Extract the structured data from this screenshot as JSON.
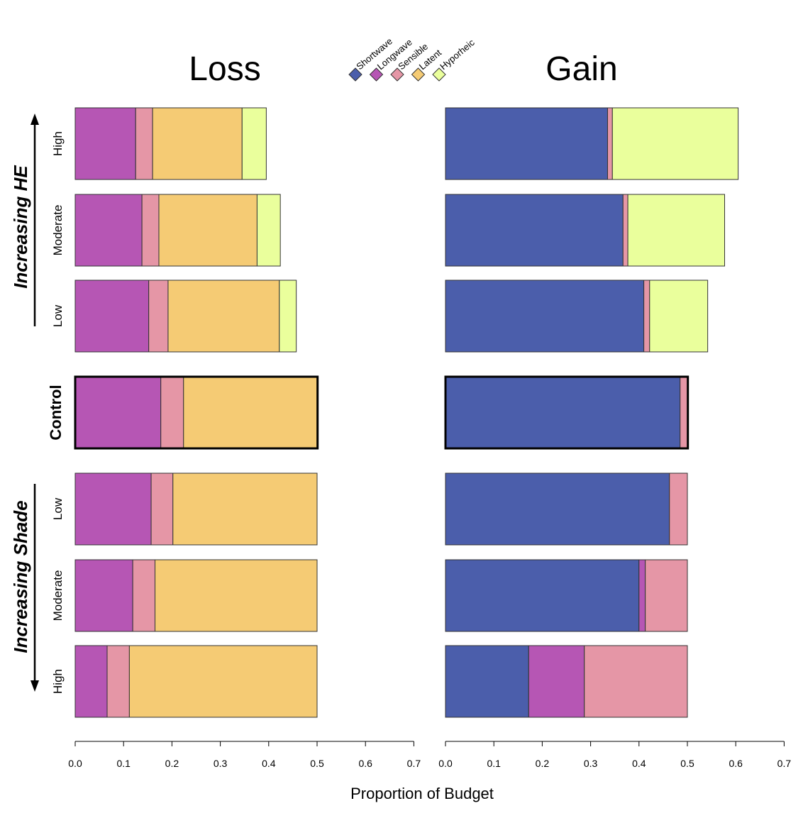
{
  "chart_data": {
    "type": "bar",
    "orientation": "horizontal",
    "stacked": true,
    "xlabel": "Proportion of Budget",
    "xlim": [
      0,
      0.7
    ],
    "xticks": [
      "0.0",
      "0.1",
      "0.2",
      "0.3",
      "0.4",
      "0.5",
      "0.6",
      "0.7"
    ],
    "components": [
      {
        "name": "Shortwave",
        "color": "#4b5eab"
      },
      {
        "name": "Longwave",
        "color": "#b656b4"
      },
      {
        "name": "Sensible",
        "color": "#e596a6"
      },
      {
        "name": "Latent",
        "color": "#f5cb74"
      },
      {
        "name": "Hyporheic",
        "color": "#eaff9c"
      }
    ],
    "group_labels": {
      "top": "Increasing HE",
      "bottom": "Increasing Shade"
    },
    "rows": [
      {
        "label": "High",
        "group": "HE"
      },
      {
        "label": "Moderate",
        "group": "HE"
      },
      {
        "label": "Low",
        "group": "HE"
      },
      {
        "label": "Control",
        "group": "Control"
      },
      {
        "label": "Low",
        "group": "Shade"
      },
      {
        "label": "Moderate",
        "group": "Shade"
      },
      {
        "label": "High",
        "group": "Shade"
      }
    ],
    "panels": [
      {
        "title": "Loss",
        "values": [
          [
            0,
            0.125,
            0.035,
            0.185,
            0.05
          ],
          [
            0,
            0.138,
            0.035,
            0.203,
            0.048
          ],
          [
            0,
            0.152,
            0.04,
            0.23,
            0.035
          ],
          [
            0,
            0.177,
            0.047,
            0.277,
            0
          ],
          [
            0,
            0.157,
            0.045,
            0.298,
            0
          ],
          [
            0,
            0.119,
            0.046,
            0.335,
            0
          ],
          [
            0,
            0.066,
            0.046,
            0.388,
            0
          ]
        ]
      },
      {
        "title": "Gain",
        "values": [
          [
            0.335,
            0,
            0.01,
            0,
            0.26
          ],
          [
            0.367,
            0,
            0.01,
            0,
            0.2
          ],
          [
            0.41,
            0,
            0.012,
            0,
            0.12
          ],
          [
            0.485,
            0,
            0.016,
            0,
            0
          ],
          [
            0.463,
            0,
            0.037,
            0,
            0
          ],
          [
            0.4,
            0.013,
            0.087,
            0,
            0
          ],
          [
            0.172,
            0.115,
            0.213,
            0,
            0
          ]
        ]
      }
    ]
  }
}
